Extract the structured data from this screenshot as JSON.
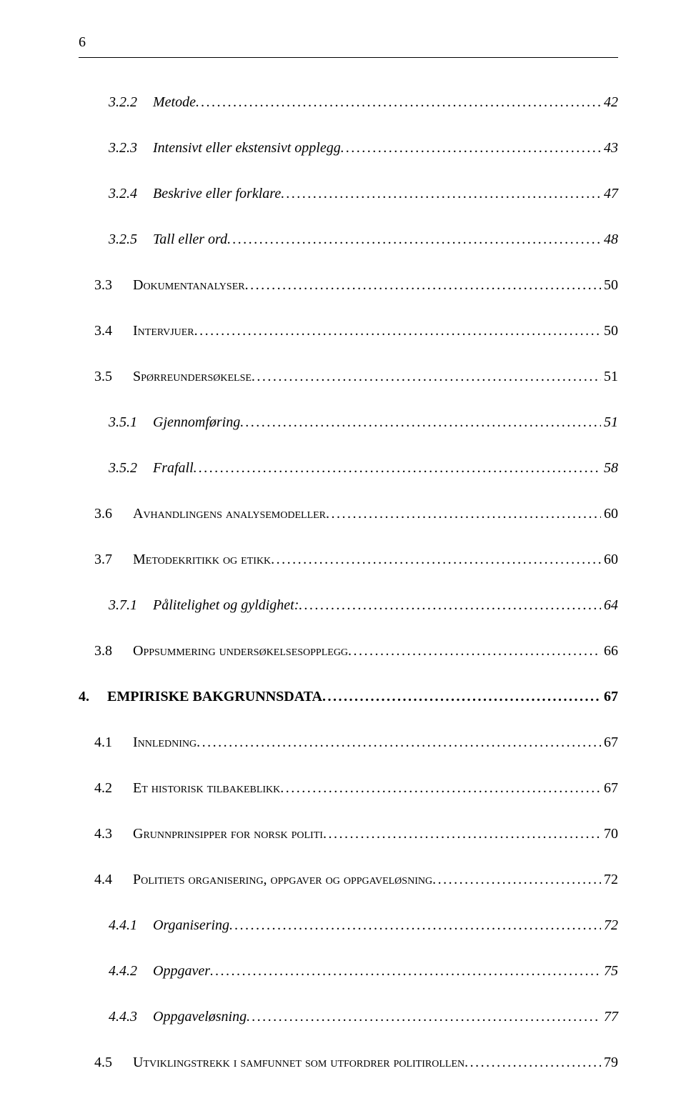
{
  "page_number": "6",
  "entries": [
    {
      "level": 3,
      "num": "3.2.2",
      "title": "Metode",
      "page": "42"
    },
    {
      "level": 3,
      "num": "3.2.3",
      "title": "Intensivt eller ekstensivt opplegg",
      "page": "43"
    },
    {
      "level": 3,
      "num": "3.2.4",
      "title": "Beskrive eller forklare",
      "page": "47"
    },
    {
      "level": 3,
      "num": "3.2.5",
      "title": "Tall eller ord",
      "page": "48"
    },
    {
      "level": 2,
      "num": "3.3",
      "title": "Dokumentanalyser",
      "page": "50"
    },
    {
      "level": 2,
      "num": "3.4",
      "title": "Intervjuer",
      "page": "50"
    },
    {
      "level": 2,
      "num": "3.5",
      "title": "Spørreundersøkelse",
      "page": "51"
    },
    {
      "level": 3,
      "num": "3.5.1",
      "title": "Gjennomføring",
      "page": "51"
    },
    {
      "level": 3,
      "num": "3.5.2",
      "title": "Frafall",
      "page": "58"
    },
    {
      "level": 2,
      "num": "3.6",
      "title": "Avhandlingens analysemodeller",
      "page": "60"
    },
    {
      "level": 2,
      "num": "3.7",
      "title": "Metodekritikk og etikk",
      "page": "60"
    },
    {
      "level": 3,
      "num": "3.7.1",
      "title": "Pålitelighet og gyldighet:",
      "page": "64"
    },
    {
      "level": 2,
      "num": "3.8",
      "title": "Oppsummering undersøkelsesopplegg",
      "page": "66"
    },
    {
      "level": 1,
      "num": "4.",
      "title": "EMPIRISKE BAKGRUNNSDATA",
      "page": "67"
    },
    {
      "level": 2,
      "num": "4.1",
      "title": "Innledning",
      "page": "67"
    },
    {
      "level": 2,
      "num": "4.2",
      "title": "Et historisk tilbakeblikk",
      "page": "67"
    },
    {
      "level": 2,
      "num": "4.3",
      "title": "Grunnprinsipper for norsk politi",
      "page": "70"
    },
    {
      "level": 2,
      "num": "4.4",
      "title": "Politiets organisering, oppgaver og oppgaveløsning",
      "page": "72"
    },
    {
      "level": 3,
      "num": "4.4.1",
      "title": "Organisering",
      "page": "72"
    },
    {
      "level": 3,
      "num": "4.4.2",
      "title": "Oppgaver",
      "page": "75"
    },
    {
      "level": 3,
      "num": "4.4.3",
      "title": "Oppgaveløsning",
      "page": "77"
    },
    {
      "level": 2,
      "num": "4.5",
      "title": "Utviklingstrekk i samfunnet som utfordrer politirollen",
      "page": "79"
    }
  ]
}
